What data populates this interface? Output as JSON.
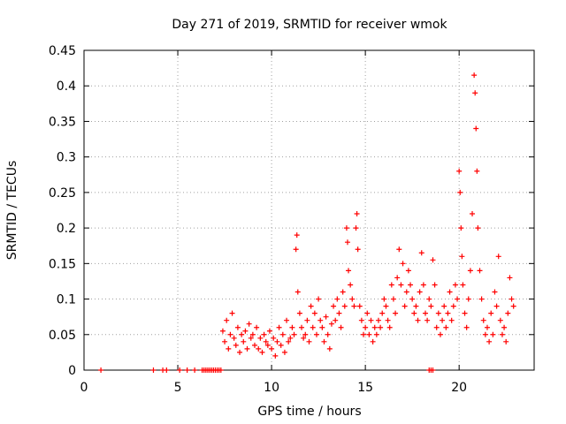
{
  "chart_data": {
    "type": "scatter",
    "title": "Day 271 of 2019, SRMTID for receiver wmok",
    "xlabel": "GPS time / hours",
    "ylabel": "SRMTID / TECUs",
    "xlim": [
      0,
      24
    ],
    "ylim": [
      0,
      0.45
    ],
    "xticks": [
      "0",
      "5",
      "10",
      "15",
      "20"
    ],
    "xtick_values": [
      0,
      5,
      10,
      15,
      20
    ],
    "yticks": [
      "0",
      "0.05",
      "0.1",
      "0.15",
      "0.2",
      "0.25",
      "0.3",
      "0.35",
      "0.4",
      "0.45"
    ],
    "ytick_values": [
      0,
      0.05,
      0.1,
      0.15,
      0.2,
      0.25,
      0.3,
      0.35,
      0.4,
      0.45
    ],
    "grid": true,
    "marker": "+",
    "series": [
      {
        "name": "SRMTID",
        "color": "#ff0000",
        "points": [
          [
            0.9,
            0.0
          ],
          [
            3.7,
            0.0
          ],
          [
            4.2,
            0.0
          ],
          [
            4.4,
            0.0
          ],
          [
            5.1,
            0.0
          ],
          [
            5.5,
            0.0
          ],
          [
            5.9,
            0.0
          ],
          [
            6.3,
            0.0
          ],
          [
            6.4,
            0.0
          ],
          [
            6.5,
            0.0
          ],
          [
            6.6,
            0.0
          ],
          [
            6.7,
            0.0
          ],
          [
            6.8,
            0.0
          ],
          [
            6.9,
            0.0
          ],
          [
            7.0,
            0.0
          ],
          [
            7.1,
            0.0
          ],
          [
            7.2,
            0.0
          ],
          [
            7.3,
            0.0
          ],
          [
            18.4,
            0.0
          ],
          [
            18.5,
            0.0
          ],
          [
            18.6,
            0.0
          ],
          [
            7.4,
            0.055
          ],
          [
            7.5,
            0.04
          ],
          [
            7.6,
            0.07
          ],
          [
            7.7,
            0.03
          ],
          [
            7.8,
            0.05
          ],
          [
            7.9,
            0.08
          ],
          [
            8.0,
            0.045
          ],
          [
            8.1,
            0.035
          ],
          [
            8.2,
            0.06
          ],
          [
            8.3,
            0.025
          ],
          [
            8.4,
            0.05
          ],
          [
            8.5,
            0.04
          ],
          [
            8.6,
            0.055
          ],
          [
            8.7,
            0.03
          ],
          [
            8.8,
            0.065
          ],
          [
            8.9,
            0.045
          ],
          [
            9.0,
            0.05
          ],
          [
            9.1,
            0.035
          ],
          [
            9.2,
            0.06
          ],
          [
            9.3,
            0.03
          ],
          [
            9.4,
            0.045
          ],
          [
            9.5,
            0.025
          ],
          [
            9.6,
            0.05
          ],
          [
            9.7,
            0.04
          ],
          [
            9.8,
            0.035
          ],
          [
            9.9,
            0.055
          ],
          [
            10.0,
            0.03
          ],
          [
            10.1,
            0.045
          ],
          [
            10.2,
            0.02
          ],
          [
            10.3,
            0.04
          ],
          [
            10.4,
            0.06
          ],
          [
            10.5,
            0.035
          ],
          [
            10.6,
            0.05
          ],
          [
            10.7,
            0.025
          ],
          [
            10.8,
            0.07
          ],
          [
            10.9,
            0.04
          ],
          [
            11.0,
            0.045
          ],
          [
            11.1,
            0.06
          ],
          [
            11.2,
            0.05
          ],
          [
            11.3,
            0.17
          ],
          [
            11.35,
            0.19
          ],
          [
            11.4,
            0.11
          ],
          [
            11.5,
            0.08
          ],
          [
            11.6,
            0.06
          ],
          [
            11.7,
            0.045
          ],
          [
            11.8,
            0.05
          ],
          [
            11.9,
            0.07
          ],
          [
            12.0,
            0.04
          ],
          [
            12.1,
            0.09
          ],
          [
            12.2,
            0.06
          ],
          [
            12.3,
            0.08
          ],
          [
            12.4,
            0.05
          ],
          [
            12.5,
            0.1
          ],
          [
            12.6,
            0.07
          ],
          [
            12.7,
            0.06
          ],
          [
            12.8,
            0.04
          ],
          [
            12.9,
            0.075
          ],
          [
            13.0,
            0.05
          ],
          [
            13.1,
            0.03
          ],
          [
            13.2,
            0.065
          ],
          [
            13.3,
            0.09
          ],
          [
            13.4,
            0.07
          ],
          [
            13.5,
            0.1
          ],
          [
            13.6,
            0.08
          ],
          [
            13.7,
            0.06
          ],
          [
            13.8,
            0.11
          ],
          [
            13.9,
            0.09
          ],
          [
            14.0,
            0.2
          ],
          [
            14.05,
            0.18
          ],
          [
            14.1,
            0.14
          ],
          [
            14.2,
            0.12
          ],
          [
            14.3,
            0.1
          ],
          [
            14.4,
            0.09
          ],
          [
            14.5,
            0.2
          ],
          [
            14.55,
            0.22
          ],
          [
            14.6,
            0.17
          ],
          [
            14.7,
            0.09
          ],
          [
            14.8,
            0.07
          ],
          [
            14.9,
            0.05
          ],
          [
            15.0,
            0.06
          ],
          [
            15.1,
            0.08
          ],
          [
            15.2,
            0.05
          ],
          [
            15.3,
            0.07
          ],
          [
            15.4,
            0.04
          ],
          [
            15.5,
            0.06
          ],
          [
            15.6,
            0.05
          ],
          [
            15.7,
            0.07
          ],
          [
            15.8,
            0.06
          ],
          [
            15.9,
            0.08
          ],
          [
            16.0,
            0.1
          ],
          [
            16.1,
            0.09
          ],
          [
            16.2,
            0.07
          ],
          [
            16.3,
            0.06
          ],
          [
            16.4,
            0.12
          ],
          [
            16.5,
            0.1
          ],
          [
            16.6,
            0.08
          ],
          [
            16.7,
            0.13
          ],
          [
            16.8,
            0.17
          ],
          [
            16.9,
            0.12
          ],
          [
            17.0,
            0.15
          ],
          [
            17.1,
            0.09
          ],
          [
            17.2,
            0.11
          ],
          [
            17.3,
            0.14
          ],
          [
            17.4,
            0.12
          ],
          [
            17.5,
            0.1
          ],
          [
            17.6,
            0.08
          ],
          [
            17.7,
            0.09
          ],
          [
            17.8,
            0.07
          ],
          [
            17.9,
            0.11
          ],
          [
            18.0,
            0.165
          ],
          [
            18.1,
            0.12
          ],
          [
            18.2,
            0.08
          ],
          [
            18.3,
            0.07
          ],
          [
            18.4,
            0.1
          ],
          [
            18.5,
            0.09
          ],
          [
            18.6,
            0.155
          ],
          [
            18.7,
            0.12
          ],
          [
            18.8,
            0.06
          ],
          [
            18.9,
            0.08
          ],
          [
            19.0,
            0.05
          ],
          [
            19.1,
            0.07
          ],
          [
            19.2,
            0.09
          ],
          [
            19.3,
            0.06
          ],
          [
            19.4,
            0.08
          ],
          [
            19.5,
            0.11
          ],
          [
            19.6,
            0.07
          ],
          [
            19.7,
            0.09
          ],
          [
            19.8,
            0.12
          ],
          [
            19.9,
            0.1
          ],
          [
            20.0,
            0.28
          ],
          [
            20.05,
            0.25
          ],
          [
            20.1,
            0.2
          ],
          [
            20.15,
            0.16
          ],
          [
            20.2,
            0.12
          ],
          [
            20.3,
            0.08
          ],
          [
            20.4,
            0.06
          ],
          [
            20.5,
            0.1
          ],
          [
            20.6,
            0.14
          ],
          [
            20.7,
            0.22
          ],
          [
            20.8,
            0.415
          ],
          [
            20.85,
            0.39
          ],
          [
            20.9,
            0.34
          ],
          [
            20.95,
            0.28
          ],
          [
            21.0,
            0.2
          ],
          [
            21.1,
            0.14
          ],
          [
            21.2,
            0.1
          ],
          [
            21.3,
            0.07
          ],
          [
            21.4,
            0.05
          ],
          [
            21.5,
            0.06
          ],
          [
            21.6,
            0.04
          ],
          [
            21.7,
            0.08
          ],
          [
            21.8,
            0.05
          ],
          [
            21.9,
            0.11
          ],
          [
            22.0,
            0.09
          ],
          [
            22.1,
            0.16
          ],
          [
            22.2,
            0.07
          ],
          [
            22.3,
            0.05
          ],
          [
            22.4,
            0.06
          ],
          [
            22.5,
            0.04
          ],
          [
            22.6,
            0.08
          ],
          [
            22.7,
            0.13
          ],
          [
            22.8,
            0.1
          ],
          [
            22.9,
            0.09
          ]
        ]
      }
    ]
  }
}
